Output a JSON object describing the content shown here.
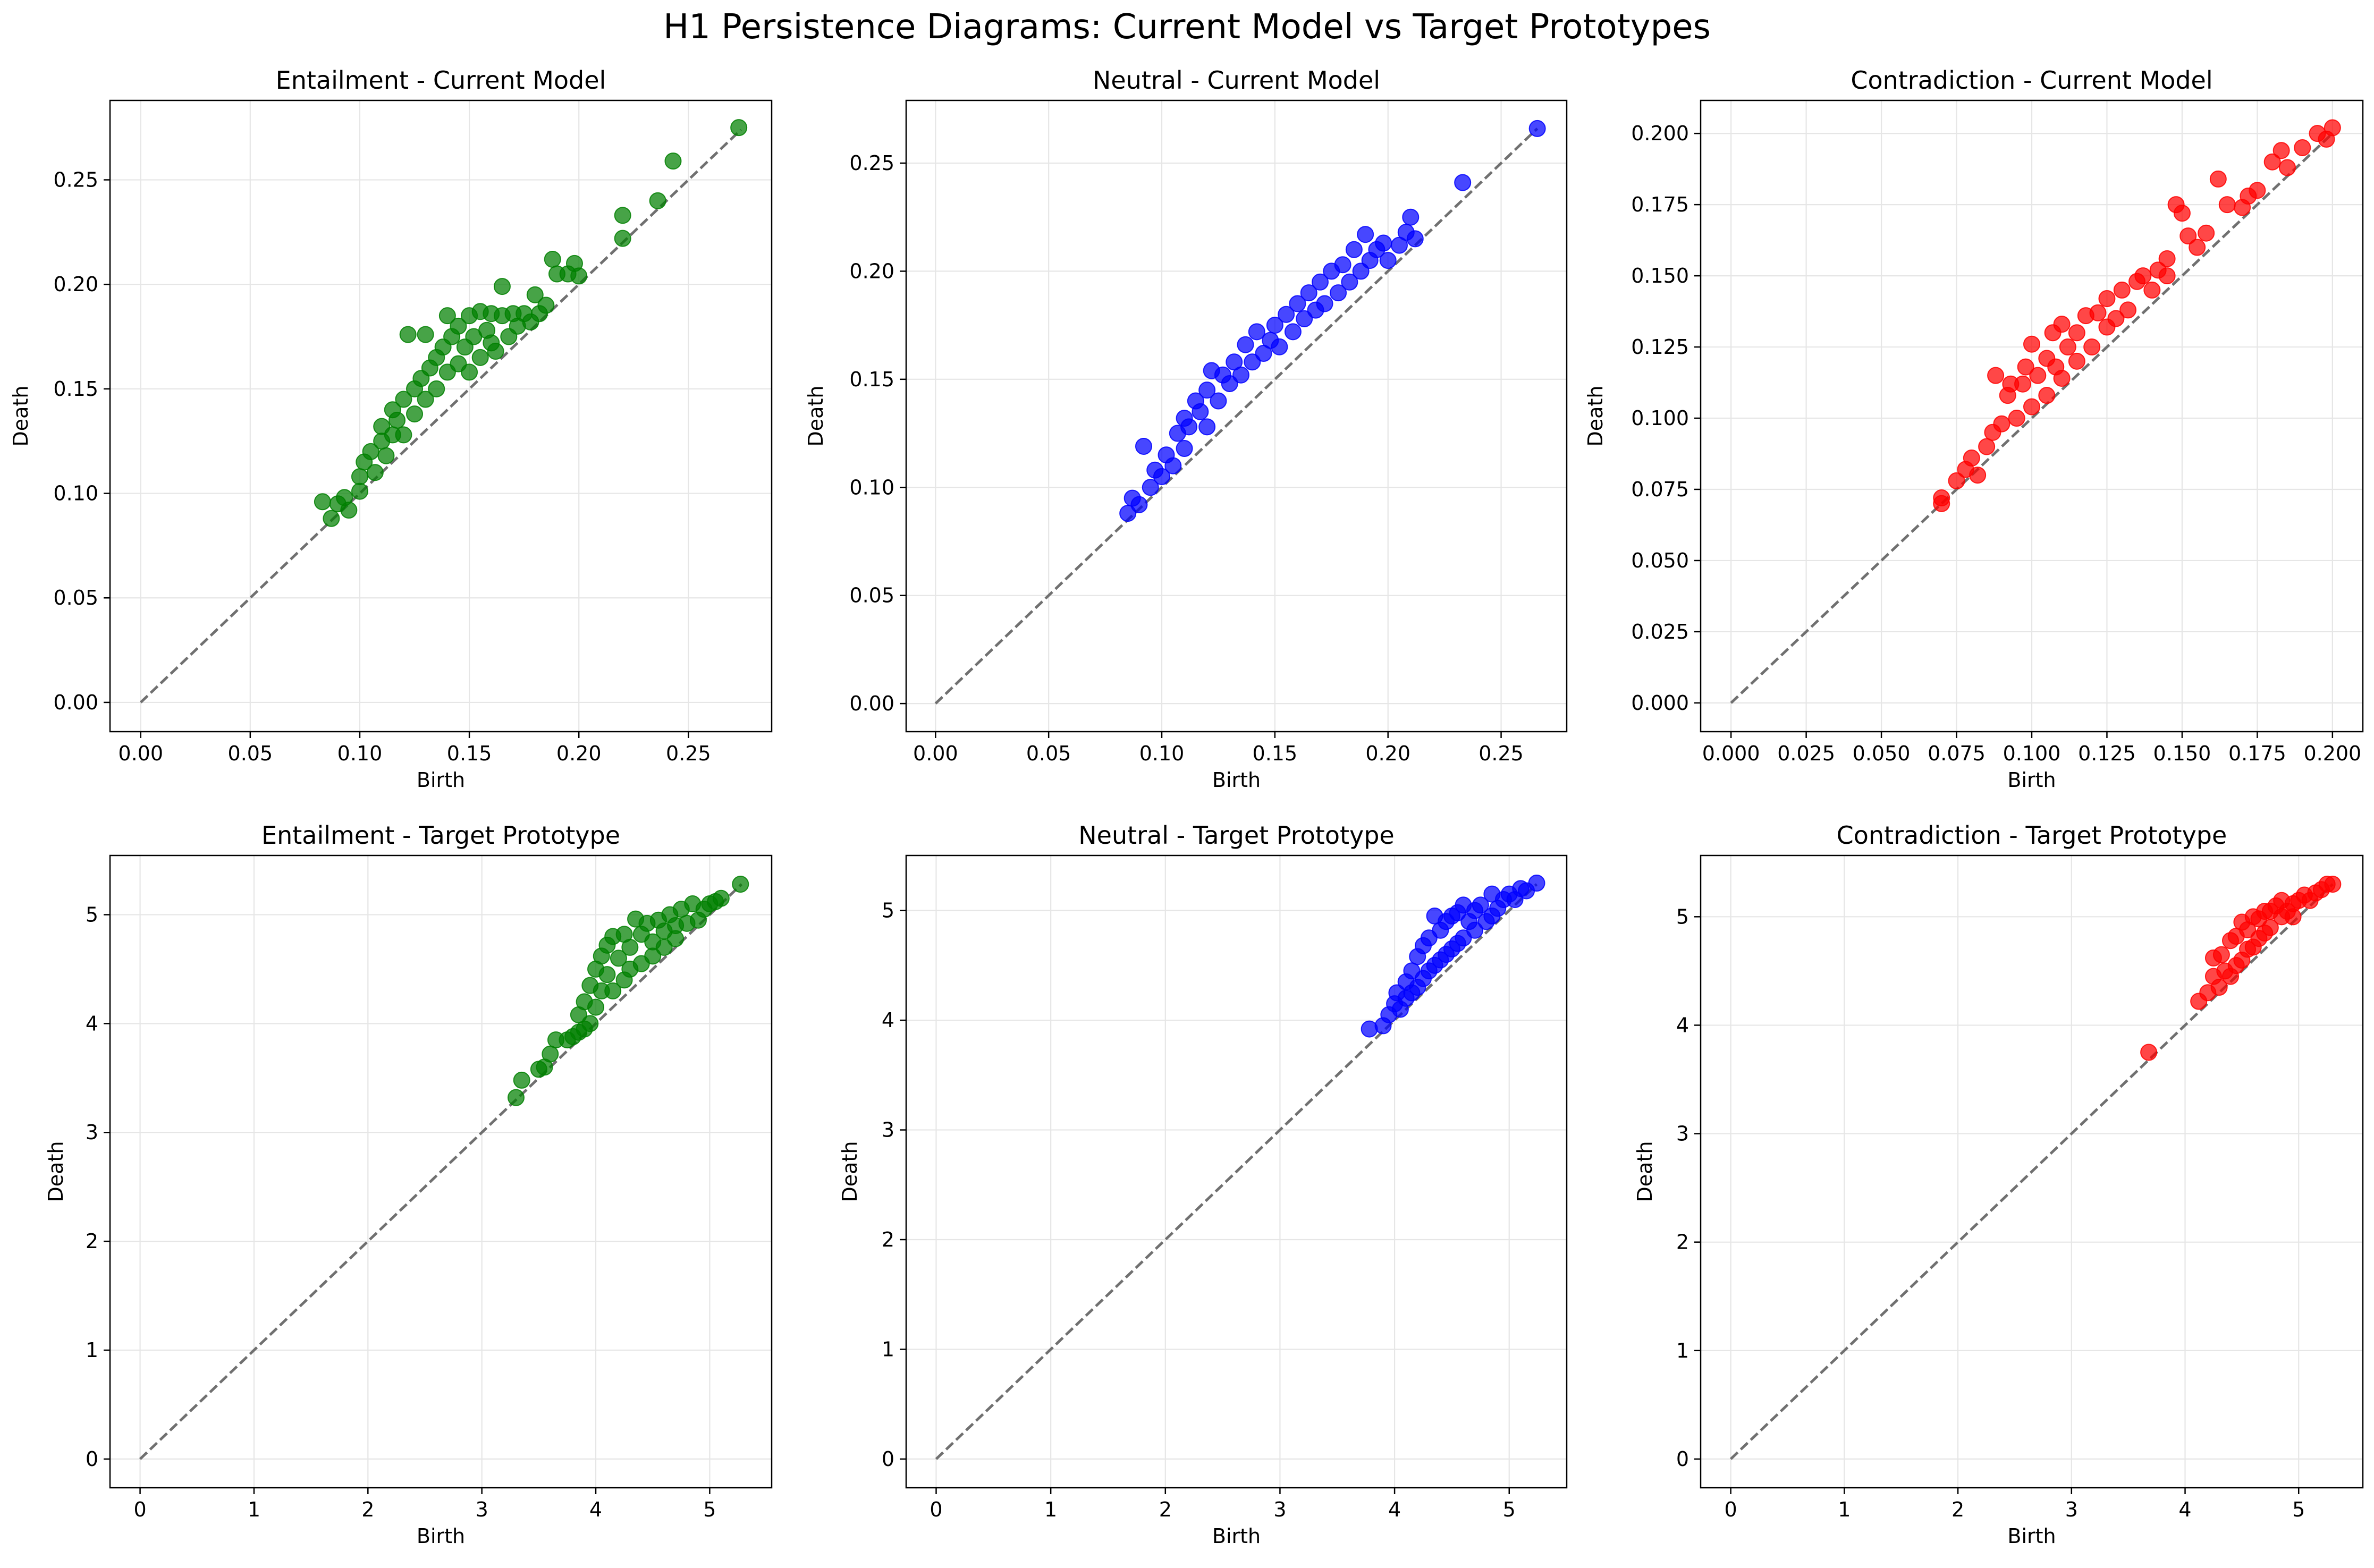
{
  "figure": {
    "title": "H1 Persistence Diagrams: Current Model vs Target Prototypes"
  },
  "colors": {
    "entailment": "#008000",
    "neutral": "#0000ff",
    "contradiction": "#ff0000",
    "diagonal": "#707070",
    "grid": "#e6e6e6"
  },
  "chart_data": [
    {
      "type": "scatter",
      "title": "Entailment - Current Model",
      "xlabel": "Birth",
      "ylabel": "Death",
      "xlim": [
        -0.014,
        0.288
      ],
      "ylim": [
        -0.014,
        0.288
      ],
      "xticks": [
        "0.00",
        "0.05",
        "0.10",
        "0.15",
        "0.20",
        "0.25"
      ],
      "yticks": [
        "0.00",
        "0.05",
        "0.10",
        "0.15",
        "0.20",
        "0.25"
      ],
      "grid": true,
      "diagonal": [
        0,
        0.274
      ],
      "color_key": "entailment",
      "points": [
        [
          0.083,
          0.096
        ],
        [
          0.087,
          0.088
        ],
        [
          0.09,
          0.095
        ],
        [
          0.093,
          0.098
        ],
        [
          0.095,
          0.092
        ],
        [
          0.1,
          0.101
        ],
        [
          0.1,
          0.108
        ],
        [
          0.102,
          0.115
        ],
        [
          0.105,
          0.12
        ],
        [
          0.107,
          0.11
        ],
        [
          0.11,
          0.125
        ],
        [
          0.11,
          0.132
        ],
        [
          0.112,
          0.118
        ],
        [
          0.115,
          0.128
        ],
        [
          0.115,
          0.14
        ],
        [
          0.117,
          0.135
        ],
        [
          0.12,
          0.145
        ],
        [
          0.12,
          0.128
        ],
        [
          0.122,
          0.176
        ],
        [
          0.125,
          0.15
        ],
        [
          0.125,
          0.138
        ],
        [
          0.128,
          0.155
        ],
        [
          0.13,
          0.176
        ],
        [
          0.13,
          0.145
        ],
        [
          0.132,
          0.16
        ],
        [
          0.135,
          0.165
        ],
        [
          0.135,
          0.15
        ],
        [
          0.138,
          0.17
        ],
        [
          0.14,
          0.158
        ],
        [
          0.14,
          0.185
        ],
        [
          0.142,
          0.175
        ],
        [
          0.145,
          0.162
        ],
        [
          0.145,
          0.18
        ],
        [
          0.148,
          0.17
        ],
        [
          0.15,
          0.185
        ],
        [
          0.15,
          0.158
        ],
        [
          0.152,
          0.175
        ],
        [
          0.155,
          0.187
        ],
        [
          0.155,
          0.165
        ],
        [
          0.158,
          0.178
        ],
        [
          0.16,
          0.172
        ],
        [
          0.16,
          0.186
        ],
        [
          0.162,
          0.168
        ],
        [
          0.165,
          0.185
        ],
        [
          0.165,
          0.199
        ],
        [
          0.168,
          0.175
        ],
        [
          0.17,
          0.186
        ],
        [
          0.172,
          0.18
        ],
        [
          0.175,
          0.186
        ],
        [
          0.178,
          0.182
        ],
        [
          0.18,
          0.195
        ],
        [
          0.182,
          0.186
        ],
        [
          0.185,
          0.19
        ],
        [
          0.188,
          0.212
        ],
        [
          0.19,
          0.205
        ],
        [
          0.195,
          0.205
        ],
        [
          0.198,
          0.21
        ],
        [
          0.2,
          0.204
        ],
        [
          0.22,
          0.233
        ],
        [
          0.22,
          0.222
        ],
        [
          0.236,
          0.24
        ],
        [
          0.243,
          0.259
        ],
        [
          0.273,
          0.275
        ]
      ]
    },
    {
      "type": "scatter",
      "title": "Neutral - Current Model",
      "xlabel": "Birth",
      "ylabel": "Death",
      "xlim": [
        -0.013,
        0.279
      ],
      "ylim": [
        -0.013,
        0.279
      ],
      "xticks": [
        "0.00",
        "0.05",
        "0.10",
        "0.15",
        "0.20",
        "0.25"
      ],
      "yticks": [
        "0.00",
        "0.05",
        "0.10",
        "0.15",
        "0.20",
        "0.25"
      ],
      "grid": true,
      "diagonal": [
        0,
        0.266
      ],
      "color_key": "neutral",
      "points": [
        [
          0.085,
          0.088
        ],
        [
          0.087,
          0.095
        ],
        [
          0.09,
          0.092
        ],
        [
          0.092,
          0.119
        ],
        [
          0.095,
          0.1
        ],
        [
          0.097,
          0.108
        ],
        [
          0.1,
          0.105
        ],
        [
          0.102,
          0.115
        ],
        [
          0.105,
          0.11
        ],
        [
          0.107,
          0.125
        ],
        [
          0.11,
          0.118
        ],
        [
          0.11,
          0.132
        ],
        [
          0.112,
          0.128
        ],
        [
          0.115,
          0.14
        ],
        [
          0.117,
          0.135
        ],
        [
          0.12,
          0.145
        ],
        [
          0.12,
          0.128
        ],
        [
          0.122,
          0.154
        ],
        [
          0.125,
          0.14
        ],
        [
          0.127,
          0.152
        ],
        [
          0.13,
          0.148
        ],
        [
          0.132,
          0.158
        ],
        [
          0.135,
          0.152
        ],
        [
          0.137,
          0.166
        ],
        [
          0.14,
          0.158
        ],
        [
          0.142,
          0.172
        ],
        [
          0.145,
          0.162
        ],
        [
          0.148,
          0.168
        ],
        [
          0.15,
          0.175
        ],
        [
          0.152,
          0.165
        ],
        [
          0.155,
          0.18
        ],
        [
          0.158,
          0.172
        ],
        [
          0.16,
          0.185
        ],
        [
          0.163,
          0.178
        ],
        [
          0.165,
          0.19
        ],
        [
          0.168,
          0.182
        ],
        [
          0.17,
          0.195
        ],
        [
          0.172,
          0.185
        ],
        [
          0.175,
          0.2
        ],
        [
          0.178,
          0.19
        ],
        [
          0.18,
          0.203
        ],
        [
          0.183,
          0.195
        ],
        [
          0.185,
          0.21
        ],
        [
          0.188,
          0.2
        ],
        [
          0.19,
          0.217
        ],
        [
          0.192,
          0.205
        ],
        [
          0.195,
          0.21
        ],
        [
          0.198,
          0.213
        ],
        [
          0.2,
          0.205
        ],
        [
          0.205,
          0.212
        ],
        [
          0.208,
          0.218
        ],
        [
          0.21,
          0.225
        ],
        [
          0.212,
          0.215
        ],
        [
          0.233,
          0.241
        ],
        [
          0.266,
          0.266
        ]
      ]
    },
    {
      "type": "scatter",
      "title": "Contradiction - Current Model",
      "xlabel": "Birth",
      "ylabel": "Death",
      "xlim": [
        -0.0101,
        0.2101
      ],
      "ylim": [
        -0.0101,
        0.2116
      ],
      "xticks": [
        "0.000",
        "0.025",
        "0.050",
        "0.075",
        "0.100",
        "0.125",
        "0.150",
        "0.175",
        "0.200"
      ],
      "yticks": [
        "0.000",
        "0.025",
        "0.050",
        "0.075",
        "0.100",
        "0.125",
        "0.150",
        "0.175",
        "0.200"
      ],
      "grid": true,
      "diagonal": [
        0,
        0.2
      ],
      "color_key": "contradiction",
      "points": [
        [
          0.07,
          0.07
        ],
        [
          0.07,
          0.072
        ],
        [
          0.075,
          0.078
        ],
        [
          0.078,
          0.082
        ],
        [
          0.08,
          0.086
        ],
        [
          0.082,
          0.08
        ],
        [
          0.085,
          0.09
        ],
        [
          0.087,
          0.095
        ],
        [
          0.088,
          0.115
        ],
        [
          0.09,
          0.098
        ],
        [
          0.092,
          0.108
        ],
        [
          0.093,
          0.112
        ],
        [
          0.095,
          0.1
        ],
        [
          0.097,
          0.112
        ],
        [
          0.098,
          0.118
        ],
        [
          0.1,
          0.104
        ],
        [
          0.1,
          0.126
        ],
        [
          0.102,
          0.115
        ],
        [
          0.105,
          0.121
        ],
        [
          0.105,
          0.108
        ],
        [
          0.107,
          0.13
        ],
        [
          0.108,
          0.118
        ],
        [
          0.11,
          0.114
        ],
        [
          0.11,
          0.133
        ],
        [
          0.112,
          0.125
        ],
        [
          0.115,
          0.13
        ],
        [
          0.115,
          0.12
        ],
        [
          0.118,
          0.136
        ],
        [
          0.12,
          0.125
        ],
        [
          0.122,
          0.137
        ],
        [
          0.125,
          0.132
        ],
        [
          0.125,
          0.142
        ],
        [
          0.128,
          0.135
        ],
        [
          0.13,
          0.145
        ],
        [
          0.132,
          0.138
        ],
        [
          0.135,
          0.148
        ],
        [
          0.137,
          0.15
        ],
        [
          0.14,
          0.145
        ],
        [
          0.142,
          0.152
        ],
        [
          0.145,
          0.156
        ],
        [
          0.145,
          0.15
        ],
        [
          0.148,
          0.175
        ],
        [
          0.15,
          0.172
        ],
        [
          0.152,
          0.164
        ],
        [
          0.155,
          0.16
        ],
        [
          0.158,
          0.165
        ],
        [
          0.162,
          0.184
        ],
        [
          0.165,
          0.175
        ],
        [
          0.17,
          0.174
        ],
        [
          0.172,
          0.178
        ],
        [
          0.175,
          0.18
        ],
        [
          0.18,
          0.19
        ],
        [
          0.183,
          0.194
        ],
        [
          0.185,
          0.188
        ],
        [
          0.19,
          0.195
        ],
        [
          0.195,
          0.2
        ],
        [
          0.198,
          0.198
        ],
        [
          0.2,
          0.202
        ]
      ]
    },
    {
      "type": "scatter",
      "title": "Entailment - Target Prototype",
      "xlabel": "Birth",
      "ylabel": "Death",
      "xlim": [
        -0.264,
        5.544
      ],
      "ylim": [
        -0.264,
        5.544
      ],
      "xticks": [
        "0",
        "1",
        "2",
        "3",
        "4",
        "5"
      ],
      "yticks": [
        "0",
        "1",
        "2",
        "3",
        "4",
        "5"
      ],
      "grid": true,
      "diagonal": [
        0,
        5.28
      ],
      "color_key": "entailment",
      "points": [
        [
          3.3,
          3.32
        ],
        [
          3.35,
          3.48
        ],
        [
          3.5,
          3.58
        ],
        [
          3.55,
          3.6
        ],
        [
          3.6,
          3.72
        ],
        [
          3.65,
          3.85
        ],
        [
          3.75,
          3.85
        ],
        [
          3.8,
          3.88
        ],
        [
          3.85,
          3.92
        ],
        [
          3.9,
          3.95
        ],
        [
          3.85,
          4.08
        ],
        [
          3.9,
          4.2
        ],
        [
          3.95,
          4.35
        ],
        [
          3.95,
          4.0
        ],
        [
          4.0,
          4.5
        ],
        [
          4.0,
          4.15
        ],
        [
          4.05,
          4.62
        ],
        [
          4.05,
          4.3
        ],
        [
          4.1,
          4.45
        ],
        [
          4.1,
          4.72
        ],
        [
          4.15,
          4.8
        ],
        [
          4.15,
          4.3
        ],
        [
          4.2,
          4.6
        ],
        [
          4.25,
          4.82
        ],
        [
          4.25,
          4.4
        ],
        [
          4.3,
          4.7
        ],
        [
          4.3,
          4.5
        ],
        [
          4.35,
          4.96
        ],
        [
          4.4,
          4.82
        ],
        [
          4.4,
          4.55
        ],
        [
          4.45,
          4.92
        ],
        [
          4.5,
          4.75
        ],
        [
          4.5,
          4.62
        ],
        [
          4.55,
          4.95
        ],
        [
          4.6,
          4.85
        ],
        [
          4.6,
          4.7
        ],
        [
          4.65,
          5.0
        ],
        [
          4.7,
          4.9
        ],
        [
          4.7,
          4.78
        ],
        [
          4.75,
          5.05
        ],
        [
          4.8,
          4.92
        ],
        [
          4.85,
          5.1
        ],
        [
          4.9,
          4.95
        ],
        [
          4.95,
          5.05
        ],
        [
          5.0,
          5.1
        ],
        [
          5.05,
          5.12
        ],
        [
          5.1,
          5.15
        ],
        [
          5.27,
          5.28
        ]
      ]
    },
    {
      "type": "scatter",
      "title": "Neutral - Target Prototype",
      "xlabel": "Birth",
      "ylabel": "Death",
      "xlim": [
        -0.262,
        5.502
      ],
      "ylim": [
        -0.262,
        5.502
      ],
      "xticks": [
        "0",
        "1",
        "2",
        "3",
        "4",
        "5"
      ],
      "yticks": [
        "0",
        "1",
        "2",
        "3",
        "4",
        "5"
      ],
      "grid": true,
      "diagonal": [
        0,
        5.24
      ],
      "color_key": "neutral",
      "points": [
        [
          3.78,
          3.92
        ],
        [
          3.9,
          3.95
        ],
        [
          3.95,
          4.05
        ],
        [
          4.0,
          4.15
        ],
        [
          4.02,
          4.25
        ],
        [
          4.05,
          4.1
        ],
        [
          4.1,
          4.35
        ],
        [
          4.1,
          4.2
        ],
        [
          4.15,
          4.45
        ],
        [
          4.15,
          4.25
        ],
        [
          4.2,
          4.58
        ],
        [
          4.2,
          4.3
        ],
        [
          4.25,
          4.68
        ],
        [
          4.25,
          4.38
        ],
        [
          4.3,
          4.75
        ],
        [
          4.3,
          4.45
        ],
        [
          4.35,
          4.95
        ],
        [
          4.35,
          4.5
        ],
        [
          4.4,
          4.82
        ],
        [
          4.4,
          4.55
        ],
        [
          4.45,
          4.9
        ],
        [
          4.45,
          4.6
        ],
        [
          4.5,
          4.95
        ],
        [
          4.5,
          4.65
        ],
        [
          4.55,
          4.98
        ],
        [
          4.55,
          4.7
        ],
        [
          4.6,
          5.05
        ],
        [
          4.6,
          4.75
        ],
        [
          4.65,
          4.9
        ],
        [
          4.7,
          5.0
        ],
        [
          4.7,
          4.82
        ],
        [
          4.75,
          5.05
        ],
        [
          4.8,
          4.9
        ],
        [
          4.85,
          5.15
        ],
        [
          4.85,
          4.95
        ],
        [
          4.9,
          5.02
        ],
        [
          4.95,
          5.1
        ],
        [
          5.0,
          5.15
        ],
        [
          5.05,
          5.1
        ],
        [
          5.1,
          5.2
        ],
        [
          5.15,
          5.18
        ],
        [
          5.24,
          5.25
        ]
      ]
    },
    {
      "type": "scatter",
      "title": "Contradiction - Target Prototype",
      "xlabel": "Birth",
      "ylabel": "Death",
      "xlim": [
        -0.265,
        5.565
      ],
      "ylim": [
        -0.265,
        5.565
      ],
      "xticks": [
        "0",
        "1",
        "2",
        "3",
        "4",
        "5"
      ],
      "yticks": [
        "0",
        "1",
        "2",
        "3",
        "4",
        "5"
      ],
      "grid": true,
      "diagonal": [
        0,
        5.3
      ],
      "color_key": "contradiction",
      "points": [
        [
          3.68,
          3.75
        ],
        [
          4.12,
          4.22
        ],
        [
          4.2,
          4.3
        ],
        [
          4.25,
          4.45
        ],
        [
          4.25,
          4.62
        ],
        [
          4.3,
          4.35
        ],
        [
          4.32,
          4.65
        ],
        [
          4.35,
          4.5
        ],
        [
          4.4,
          4.78
        ],
        [
          4.4,
          4.45
        ],
        [
          4.45,
          4.82
        ],
        [
          4.45,
          4.55
        ],
        [
          4.5,
          4.95
        ],
        [
          4.5,
          4.6
        ],
        [
          4.55,
          4.88
        ],
        [
          4.55,
          4.7
        ],
        [
          4.6,
          5.0
        ],
        [
          4.6,
          4.72
        ],
        [
          4.65,
          4.98
        ],
        [
          4.65,
          4.8
        ],
        [
          4.7,
          5.05
        ],
        [
          4.7,
          4.85
        ],
        [
          4.75,
          5.05
        ],
        [
          4.75,
          4.9
        ],
        [
          4.8,
          5.1
        ],
        [
          4.85,
          5.0
        ],
        [
          4.85,
          5.15
        ],
        [
          4.9,
          5.05
        ],
        [
          4.95,
          5.12
        ],
        [
          4.95,
          5.0
        ],
        [
          5.0,
          5.15
        ],
        [
          5.05,
          5.2
        ],
        [
          5.1,
          5.15
        ],
        [
          5.15,
          5.22
        ],
        [
          5.2,
          5.25
        ],
        [
          5.25,
          5.3
        ],
        [
          5.3,
          5.3
        ]
      ]
    }
  ]
}
